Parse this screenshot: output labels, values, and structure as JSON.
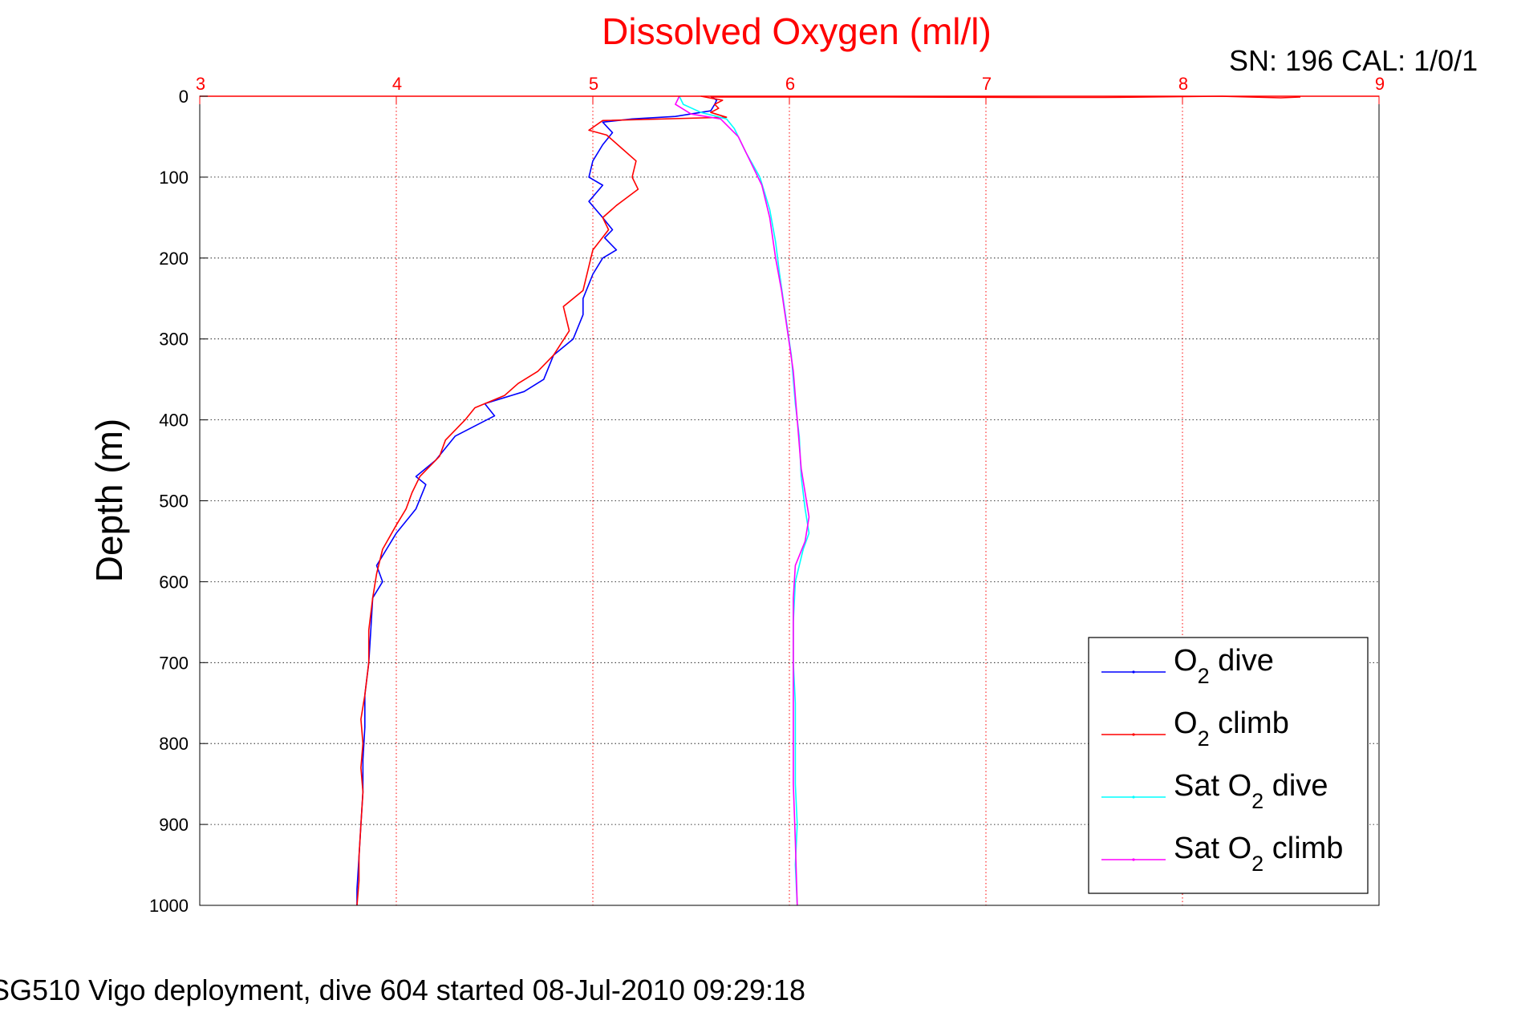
{
  "chart_data": {
    "type": "line",
    "title": "Dissolved Oxygen (ml/l)",
    "xlabel": "",
    "ylabel": "Depth (m)",
    "xlim": [
      3,
      9
    ],
    "ylim": [
      0,
      1000
    ],
    "y_reversed": true,
    "x_axis_position": "top",
    "x_ticks": [
      "3",
      "4",
      "5",
      "6",
      "7",
      "8",
      "9"
    ],
    "y_ticks": [
      "0",
      "100",
      "200",
      "300",
      "400",
      "500",
      "600",
      "700",
      "800",
      "900",
      "1000"
    ],
    "grid": true,
    "legend_position": "bottom-right",
    "annotations": {
      "serial": "SN: 196  CAL: 1/0/1",
      "caption": "SG510 Vigo deployment, dive 604 started 08-Jul-2010 09:29:18"
    },
    "series": [
      {
        "legend_base": "O",
        "legend_sub": "2",
        "legend_suffix": " dive",
        "color": "#0000ff",
        "points": [
          [
            5.6,
            0
          ],
          [
            5.63,
            5
          ],
          [
            5.62,
            10
          ],
          [
            5.6,
            18
          ],
          [
            5.42,
            25
          ],
          [
            5.2,
            28
          ],
          [
            5.05,
            32
          ],
          [
            5.1,
            45
          ],
          [
            5.05,
            60
          ],
          [
            5.0,
            80
          ],
          [
            4.98,
            100
          ],
          [
            5.05,
            110
          ],
          [
            4.98,
            130
          ],
          [
            5.05,
            150
          ],
          [
            5.1,
            165
          ],
          [
            5.06,
            175
          ],
          [
            5.12,
            190
          ],
          [
            5.05,
            200
          ],
          [
            5.0,
            220
          ],
          [
            4.95,
            250
          ],
          [
            4.95,
            270
          ],
          [
            4.9,
            300
          ],
          [
            4.8,
            320
          ],
          [
            4.75,
            350
          ],
          [
            4.65,
            365
          ],
          [
            4.45,
            380
          ],
          [
            4.5,
            395
          ],
          [
            4.3,
            420
          ],
          [
            4.2,
            450
          ],
          [
            4.1,
            470
          ],
          [
            4.15,
            480
          ],
          [
            4.1,
            510
          ],
          [
            4.0,
            540
          ],
          [
            3.95,
            560
          ],
          [
            3.9,
            580
          ],
          [
            3.93,
            600
          ],
          [
            3.88,
            620
          ],
          [
            3.87,
            660
          ],
          [
            3.86,
            700
          ],
          [
            3.84,
            740
          ],
          [
            3.84,
            780
          ],
          [
            3.83,
            820
          ],
          [
            3.83,
            860
          ],
          [
            3.82,
            900
          ],
          [
            3.81,
            940
          ],
          [
            3.8,
            980
          ],
          [
            3.8,
            1000
          ]
        ]
      },
      {
        "legend_base": "O",
        "legend_sub": "2",
        "legend_suffix": " climb",
        "color": "#ff0000",
        "points": [
          [
            5.55,
            0
          ],
          [
            5.66,
            5
          ],
          [
            5.62,
            10
          ],
          [
            5.64,
            15
          ],
          [
            5.6,
            20
          ],
          [
            5.68,
            26
          ],
          [
            5.05,
            30
          ],
          [
            4.98,
            42
          ],
          [
            5.07,
            48
          ],
          [
            5.15,
            65
          ],
          [
            5.22,
            80
          ],
          [
            5.2,
            100
          ],
          [
            5.23,
            115
          ],
          [
            5.12,
            135
          ],
          [
            5.05,
            150
          ],
          [
            5.08,
            165
          ],
          [
            5.0,
            190
          ],
          [
            4.98,
            210
          ],
          [
            4.95,
            240
          ],
          [
            4.85,
            260
          ],
          [
            4.88,
            290
          ],
          [
            4.8,
            320
          ],
          [
            4.72,
            340
          ],
          [
            4.62,
            355
          ],
          [
            4.55,
            370
          ],
          [
            4.4,
            385
          ],
          [
            4.35,
            400
          ],
          [
            4.25,
            425
          ],
          [
            4.22,
            445
          ],
          [
            4.12,
            470
          ],
          [
            4.08,
            490
          ],
          [
            4.05,
            510
          ],
          [
            4.0,
            530
          ],
          [
            3.93,
            560
          ],
          [
            3.9,
            590
          ],
          [
            3.88,
            620
          ],
          [
            3.86,
            660
          ],
          [
            3.86,
            700
          ],
          [
            3.84,
            740
          ],
          [
            3.82,
            770
          ],
          [
            3.83,
            800
          ],
          [
            3.82,
            830
          ],
          [
            3.83,
            860
          ],
          [
            3.82,
            900
          ],
          [
            3.81,
            940
          ],
          [
            3.81,
            970
          ],
          [
            3.8,
            1000
          ]
        ]
      },
      {
        "legend_base": "Sat O",
        "legend_sub": "2",
        "legend_suffix": " dive",
        "color": "#00ffff",
        "points": [
          [
            5.44,
            0
          ],
          [
            5.46,
            10
          ],
          [
            5.55,
            20
          ],
          [
            5.68,
            28
          ],
          [
            5.72,
            40
          ],
          [
            5.78,
            70
          ],
          [
            5.85,
            100
          ],
          [
            5.9,
            140
          ],
          [
            5.93,
            180
          ],
          [
            5.95,
            220
          ],
          [
            5.98,
            270
          ],
          [
            6.01,
            320
          ],
          [
            6.03,
            380
          ],
          [
            6.05,
            420
          ],
          [
            6.06,
            470
          ],
          [
            6.08,
            510
          ],
          [
            6.1,
            540
          ],
          [
            6.07,
            560
          ],
          [
            6.03,
            600
          ],
          [
            6.02,
            650
          ],
          [
            6.02,
            700
          ],
          [
            6.03,
            750
          ],
          [
            6.03,
            800
          ],
          [
            6.03,
            850
          ],
          [
            6.04,
            900
          ],
          [
            6.03,
            950
          ],
          [
            6.04,
            1000
          ]
        ]
      },
      {
        "legend_base": "Sat O",
        "legend_sub": "2",
        "legend_suffix": " climb",
        "color": "#ff00ff",
        "points": [
          [
            5.44,
            0
          ],
          [
            5.42,
            10
          ],
          [
            5.5,
            22
          ],
          [
            5.65,
            28
          ],
          [
            5.74,
            50
          ],
          [
            5.8,
            80
          ],
          [
            5.86,
            110
          ],
          [
            5.9,
            150
          ],
          [
            5.93,
            200
          ],
          [
            5.96,
            240
          ],
          [
            5.99,
            290
          ],
          [
            6.02,
            340
          ],
          [
            6.04,
            400
          ],
          [
            6.06,
            460
          ],
          [
            6.1,
            520
          ],
          [
            6.08,
            550
          ],
          [
            6.03,
            580
          ],
          [
            6.02,
            620
          ],
          [
            6.02,
            700
          ],
          [
            6.02,
            780
          ],
          [
            6.02,
            850
          ],
          [
            6.03,
            920
          ],
          [
            6.04,
            1000
          ]
        ]
      },
      {
        "legend_base": "",
        "legend_sub": "",
        "legend_suffix": "",
        "color": "#ff0000",
        "in_legend": false,
        "points": [
          [
            5.6,
            1
          ],
          [
            6.5,
            1
          ],
          [
            7.3,
            1.5
          ],
          [
            7.6,
            1.5
          ],
          [
            8.2,
            0
          ],
          [
            8.5,
            2
          ],
          [
            8.6,
            1
          ]
        ]
      }
    ]
  }
}
